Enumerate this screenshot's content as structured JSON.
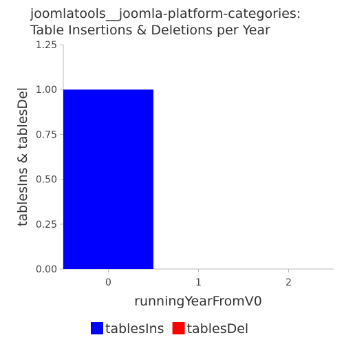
{
  "chart_data": {
    "type": "bar",
    "title_lines": [
      "joomlatools__joomla-platform-categories:",
      "Table Insertions & Deletions per Year"
    ],
    "xlabel": "runningYearFromV0",
    "ylabel": "tablesIns & tablesDel",
    "x": [
      0,
      1,
      2
    ],
    "x_tick_labels": [
      "0",
      "1",
      "2"
    ],
    "xlim": [
      -0.5,
      2.5
    ],
    "y_tick_labels": [
      "0.00",
      "0.25",
      "0.50",
      "0.75",
      "1.00",
      "1.25"
    ],
    "y_ticks": [
      0,
      0.25,
      0.5,
      0.75,
      1.0,
      1.25
    ],
    "ylim": [
      0,
      1.25
    ],
    "bar_width": 1,
    "grid": false,
    "legend_position": "bottom",
    "series": [
      {
        "name": "tablesIns",
        "color": "#0000ff",
        "values": [
          1,
          0,
          0
        ]
      },
      {
        "name": "tablesDel",
        "color": "#ff0000",
        "values": [
          0,
          0,
          0
        ]
      }
    ]
  }
}
